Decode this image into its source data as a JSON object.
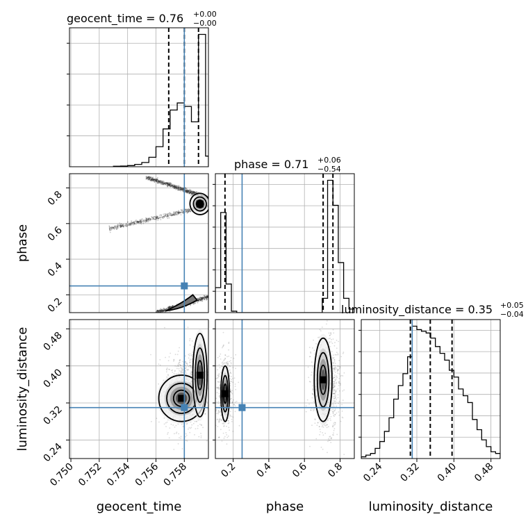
{
  "chart_data": {
    "type": "corner",
    "parameters": [
      "geocent_time",
      "phase",
      "luminosity_distance"
    ],
    "truths": {
      "geocent_time": 0.758,
      "phase": 0.25,
      "luminosity_distance": 0.31
    },
    "truth_color": "#4682b4",
    "histogram_color": "#000000",
    "titles": {
      "geocent_time": {
        "text": "geocent_time = 0.76",
        "plus": "+0.00",
        "minus": "−0.00"
      },
      "phase": {
        "text": "phase = 0.71",
        "plus": "+0.06",
        "minus": "−0.54"
      },
      "luminosity_distance": {
        "text": "luminosity_distance = 0.35",
        "plus": "+0.05",
        "minus": "−0.04"
      }
    },
    "axis_labels": {
      "geocent_time": "geocent_time",
      "phase": "phase",
      "luminosity_distance": "luminosity_distance"
    },
    "ranges": {
      "geocent_time": [
        0.7499,
        0.7597
      ],
      "phase": [
        0.1,
        0.88
      ],
      "luminosity_distance": [
        0.2,
        0.5
      ]
    },
    "ticks": {
      "geocent_time": [
        "0.750",
        "0.752",
        "0.754",
        "0.756",
        "0.758"
      ],
      "phase": [
        "0.2",
        "0.4",
        "0.6",
        "0.8"
      ],
      "luminosity_distance": [
        "0.24",
        "0.32",
        "0.40",
        "0.48"
      ]
    },
    "quantiles": {
      "geocent_time": [
        0.7569,
        0.758,
        0.759
      ],
      "phase": [
        0.154,
        0.705,
        0.76
      ],
      "luminosity_distance": [
        0.306,
        0.349,
        0.396
      ]
    },
    "marginals": {
      "geocent_time": {
        "edges": [
          0.753,
          0.7535,
          0.754,
          0.7545,
          0.755,
          0.7555,
          0.756,
          0.7565,
          0.757,
          0.7575,
          0.758,
          0.7585,
          0.759,
          0.7595,
          0.7597
        ],
        "counts": [
          2,
          3,
          5,
          10,
          18,
          40,
          85,
          160,
          240,
          270,
          255,
          190,
          560,
          45
        ]
      },
      "phase": {
        "edges": [
          0.1,
          0.13,
          0.16,
          0.19,
          0.22,
          0.25,
          0.28,
          0.31,
          0.34,
          0.37,
          0.4,
          0.43,
          0.46,
          0.49,
          0.52,
          0.55,
          0.58,
          0.61,
          0.64,
          0.67,
          0.7,
          0.73,
          0.76,
          0.79,
          0.82,
          0.85,
          0.88
        ],
        "counts": [
          35,
          140,
          40,
          2,
          0,
          0,
          0,
          0,
          0,
          0,
          0,
          0,
          0,
          0,
          0,
          0,
          0,
          0,
          0,
          0,
          20,
          185,
          150,
          70,
          20,
          5
        ]
      },
      "luminosity_distance": {
        "edges": [
          0.2,
          0.21,
          0.22,
          0.23,
          0.24,
          0.25,
          0.26,
          0.27,
          0.28,
          0.29,
          0.3,
          0.31,
          0.32,
          0.33,
          0.34,
          0.35,
          0.36,
          0.37,
          0.38,
          0.39,
          0.4,
          0.41,
          0.42,
          0.43,
          0.44,
          0.45,
          0.46,
          0.47,
          0.48,
          0.49,
          0.5
        ],
        "counts": [
          1,
          2,
          3,
          6,
          10,
          16,
          24,
          35,
          43,
          50,
          60,
          78,
          76,
          75,
          74,
          71,
          66,
          62,
          58,
          52,
          48,
          41,
          37,
          33,
          23,
          17,
          11,
          7,
          4,
          3
        ]
      }
    },
    "ytick_counts": {
      "geocent_time": 4,
      "phase": 6,
      "luminosity_distance": 6
    },
    "modes": {
      "geocent_time_phase": [
        [
          0.7591,
          0.71
        ],
        [
          0.7588,
          0.17
        ]
      ],
      "geocent_time_luminosity_distance": [
        [
          0.759,
          0.37
        ]
      ],
      "phase_luminosity_distance": [
        [
          0.155,
          0.34
        ],
        [
          0.705,
          0.37
        ]
      ]
    }
  }
}
